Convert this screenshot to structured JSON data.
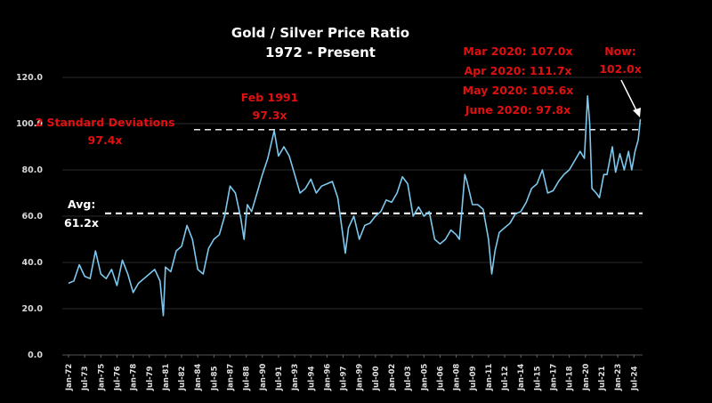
{
  "chart_data": {
    "type": "line",
    "title": "Gold / Silver Price Ratio",
    "subtitle": "1972 - Present",
    "xlabel": "",
    "ylabel": "",
    "ylim": [
      0,
      120
    ],
    "grid": true,
    "y_ticks": [
      "0.0",
      "20.0",
      "40.0",
      "60.0",
      "80.0",
      "100.0",
      "120.0"
    ],
    "y_tick_values": [
      0,
      20,
      40,
      60,
      80,
      100,
      120
    ],
    "x_ticks": [
      "Jan-72",
      "Jul-73",
      "Jan-75",
      "Jul-76",
      "Jan-78",
      "Jul-79",
      "Jan-81",
      "Jul-82",
      "Jan-84",
      "Jul-85",
      "Jan-87",
      "Jul-88",
      "Jan-90",
      "Jul-91",
      "Jan-93",
      "Jul-94",
      "Jan-96",
      "Jul-97",
      "Jan-99",
      "Jul-00",
      "Jan-02",
      "Jul-03",
      "Jan-05",
      "Jul-06",
      "Jan-08",
      "Jul-09",
      "Jan-11",
      "Jul-12",
      "Jan-14",
      "Jul-15",
      "Jan-17",
      "Jul-18",
      "Jan-20",
      "Jul-21",
      "Jan-23",
      "Jul-24"
    ],
    "series": [
      {
        "name": "Gold / Silver Ratio",
        "color": "#7ec8ee",
        "x": [
          1972.0,
          1972.5,
          1973.0,
          1973.5,
          1974.0,
          1974.5,
          1975.0,
          1975.5,
          1976.0,
          1976.5,
          1977.0,
          1977.5,
          1978.0,
          1978.5,
          1979.0,
          1979.5,
          1980.0,
          1980.5,
          1980.8,
          1981.0,
          1981.5,
          1982.0,
          1982.5,
          1983.0,
          1983.5,
          1984.0,
          1984.5,
          1985.0,
          1985.5,
          1986.0,
          1986.5,
          1987.0,
          1987.5,
          1988.0,
          1988.3,
          1988.6,
          1989.0,
          1989.5,
          1990.0,
          1990.5,
          1991.1,
          1991.5,
          1992.0,
          1992.5,
          1993.0,
          1993.5,
          1994.0,
          1994.5,
          1995.0,
          1995.5,
          1996.0,
          1996.5,
          1997.0,
          1997.7,
          1998.0,
          1998.5,
          1999.0,
          1999.5,
          2000.0,
          2000.5,
          2001.0,
          2001.5,
          2002.0,
          2002.5,
          2003.0,
          2003.5,
          2004.0,
          2004.5,
          2005.0,
          2005.5,
          2006.0,
          2006.5,
          2007.0,
          2007.5,
          2008.0,
          2008.3,
          2008.8,
          2009.0,
          2009.5,
          2010.0,
          2010.5,
          2011.0,
          2011.3,
          2011.6,
          2012.0,
          2012.5,
          2013.0,
          2013.5,
          2014.0,
          2014.5,
          2015.0,
          2015.5,
          2016.0,
          2016.5,
          2017.0,
          2017.5,
          2018.0,
          2018.5,
          2019.0,
          2019.5,
          2019.9,
          2020.2,
          2020.4,
          2020.6,
          2021.0,
          2021.3,
          2021.7,
          2022.0,
          2022.5,
          2022.8,
          2023.2,
          2023.6,
          2024.0,
          2024.3,
          2024.6,
          2024.9,
          2025.1
        ],
        "values": [
          31,
          32,
          39,
          34,
          33,
          45,
          35,
          33,
          37,
          30,
          41,
          35,
          27,
          31,
          33,
          35,
          37,
          32,
          17,
          38,
          36,
          45,
          47,
          56,
          50,
          37,
          35,
          46,
          50,
          52,
          60,
          73,
          70,
          59,
          50,
          65,
          62,
          70,
          78,
          85,
          97,
          86,
          90,
          86,
          78,
          70,
          72,
          76,
          70,
          73,
          74,
          75,
          68,
          44,
          55,
          60,
          50,
          56,
          57,
          60,
          62,
          67,
          66,
          70,
          77,
          74,
          60,
          64,
          60,
          62,
          50,
          48,
          50,
          54,
          52,
          50,
          78,
          75,
          65,
          65,
          63,
          50,
          35,
          45,
          53,
          55,
          57,
          61,
          62,
          66,
          72,
          74,
          80,
          70,
          71,
          75,
          78,
          80,
          84,
          88,
          85,
          112,
          100,
          72,
          70,
          68,
          78,
          78,
          90,
          79,
          87,
          80,
          88,
          80,
          88,
          93,
          102
        ]
      }
    ],
    "reference_lines": [
      {
        "name": "2 Standard Deviations",
        "value": 97.4,
        "label_line1": "2 Standard Deviations",
        "label_line2": "97.4x"
      },
      {
        "name": "Average",
        "value": 61.2,
        "label_line1": "Avg:",
        "label_line2": "61.2x"
      }
    ],
    "annotations": {
      "feb1991": [
        "Feb 1991",
        "97.3x"
      ],
      "covid": [
        "Mar 2020: 107.0x",
        "Apr 2020: 111.7x",
        "May 2020: 105.6x",
        "June 2020: 97.8x"
      ],
      "now": [
        "Now:",
        "102.0x"
      ]
    }
  }
}
